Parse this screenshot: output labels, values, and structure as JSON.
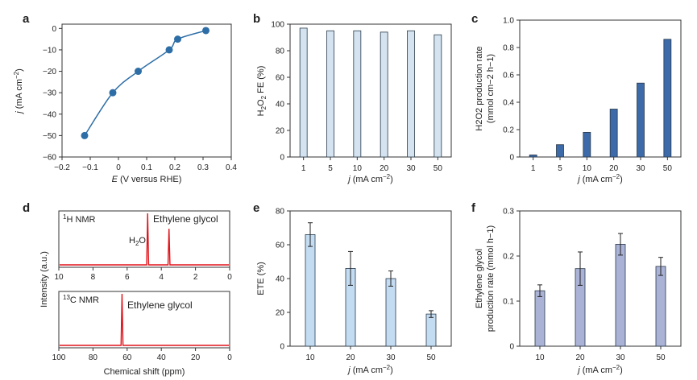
{
  "panels": {
    "a": "a",
    "b": "b",
    "c": "c",
    "d": "d",
    "e": "e",
    "f": "f"
  },
  "colors": {
    "line": "#2e6ea6",
    "fe_bar": "#d4e3ef",
    "prod_bar": "#3d6aa8",
    "ete_bar": "#c4dcf2",
    "eg_bar": "#aab3d6",
    "nmr": "#e0141b",
    "axis": "#333333"
  },
  "chart_data": [
    {
      "panel": "a",
      "type": "line",
      "xlabel_pre": "E",
      "xlabel_post": " (V versus RHE)",
      "ylabel_pre": "j",
      "ylabel_post": " (mA cm",
      "ylabel_sup": "−2",
      "ylabel_end": ")",
      "xlim": [
        -0.2,
        0.4
      ],
      "ylim": [
        -60,
        2
      ],
      "xticks": [
        "−0.2",
        "−0.1",
        "0",
        "0.1",
        "0.2",
        "0.3",
        "0.4"
      ],
      "xtick_values": [
        -0.2,
        -0.1,
        0,
        0.1,
        0.2,
        0.3,
        0.4
      ],
      "yticks": [
        "0",
        "−10",
        "−20",
        "−30",
        "−40",
        "−50",
        "−60"
      ],
      "ytick_values": [
        0,
        -10,
        -20,
        -30,
        -40,
        -50,
        -60
      ],
      "x": [
        -0.12,
        -0.02,
        0.07,
        0.18,
        0.21,
        0.31
      ],
      "y": [
        -50,
        -30,
        -20,
        -10,
        -5,
        -1
      ]
    },
    {
      "panel": "b",
      "type": "bar",
      "categories": [
        "1",
        "5",
        "10",
        "20",
        "30",
        "50"
      ],
      "values": [
        97,
        95,
        95,
        94,
        95,
        92
      ],
      "xlabel_pre": "j",
      "xlabel_post": " (mA cm",
      "xlabel_sup": "−2",
      "xlabel_end": ")",
      "ylabel": "H2O2 FE (%)",
      "ylabel_parts": [
        "H",
        "2",
        "O",
        "2",
        " FE (%)"
      ],
      "ylim": [
        0,
        100
      ],
      "yticks": [
        "0",
        "20",
        "40",
        "60",
        "80",
        "100"
      ],
      "ytick_values": [
        0,
        20,
        40,
        60,
        80,
        100
      ]
    },
    {
      "panel": "c",
      "type": "bar",
      "categories": [
        "1",
        "5",
        "10",
        "20",
        "30",
        "50"
      ],
      "values": [
        0.015,
        0.09,
        0.18,
        0.35,
        0.54,
        0.86
      ],
      "xlabel_pre": "j",
      "xlabel_post": " (mA cm",
      "xlabel_sup": "−2",
      "xlabel_end": ")",
      "ylabel_line1": "H2O2 production rate",
      "ylabel_line2": "(mmol cm−2 h−1)",
      "ylim": [
        0,
        1.0
      ],
      "yticks": [
        "0",
        "0.2",
        "0.4",
        "0.6",
        "0.8",
        "1.0"
      ],
      "ytick_values": [
        0,
        0.2,
        0.4,
        0.6,
        0.8,
        1.0
      ]
    },
    {
      "panel": "d",
      "type": "line",
      "ylabel": "Intensity (a.u.)",
      "xlabel": "Chemical shift (ppm)",
      "top": {
        "label": "1H NMR",
        "label_sup": "1",
        "label_main": "H NMR",
        "xticks": [
          "10",
          "8",
          "6",
          "4",
          "2",
          "0"
        ],
        "xtick_values": [
          10,
          8,
          6,
          4,
          2,
          0
        ],
        "xlim": [
          10,
          0
        ],
        "peaks": [
          {
            "ppm": 4.8,
            "height": 1.0
          },
          {
            "ppm": 3.55,
            "height": 0.7
          }
        ],
        "annotations": [
          "H2O",
          "Ethylene glycol"
        ]
      },
      "bottom": {
        "label": "13C NMR",
        "label_sup": "13",
        "label_main": "C NMR",
        "xticks": [
          "100",
          "80",
          "60",
          "40",
          "20",
          "0"
        ],
        "xtick_values": [
          100,
          80,
          60,
          40,
          20,
          0
        ],
        "xlim": [
          100,
          0
        ],
        "peaks": [
          {
            "ppm": 63,
            "height": 1.0
          }
        ],
        "annotations": [
          "Ethylene glycol"
        ]
      }
    },
    {
      "panel": "e",
      "type": "bar",
      "categories": [
        "10",
        "20",
        "30",
        "50"
      ],
      "values": [
        66,
        46,
        40,
        19
      ],
      "errors": [
        7,
        10,
        4.5,
        2
      ],
      "xlabel_pre": "j",
      "xlabel_post": " (mA cm",
      "xlabel_sup": "−2",
      "xlabel_end": ")",
      "ylabel": "ETE (%)",
      "ylim": [
        0,
        80
      ],
      "yticks": [
        "0",
        "20",
        "40",
        "60",
        "80"
      ],
      "ytick_values": [
        0,
        20,
        40,
        60,
        80
      ]
    },
    {
      "panel": "f",
      "type": "bar",
      "categories": [
        "10",
        "20",
        "30",
        "50"
      ],
      "values": [
        0.123,
        0.172,
        0.226,
        0.177
      ],
      "errors": [
        0.013,
        0.037,
        0.024,
        0.02
      ],
      "xlabel_pre": "j",
      "xlabel_post": " (mA cm",
      "xlabel_sup": "−2",
      "xlabel_end": ")",
      "ylabel_line1": "Ethylene glycol",
      "ylabel_line2": "production rate (mmol h−1)",
      "ylim": [
        0,
        0.3
      ],
      "yticks": [
        "0",
        "0.1",
        "0.2",
        "0.3"
      ],
      "ytick_values": [
        0,
        0.1,
        0.2,
        0.3
      ]
    }
  ]
}
